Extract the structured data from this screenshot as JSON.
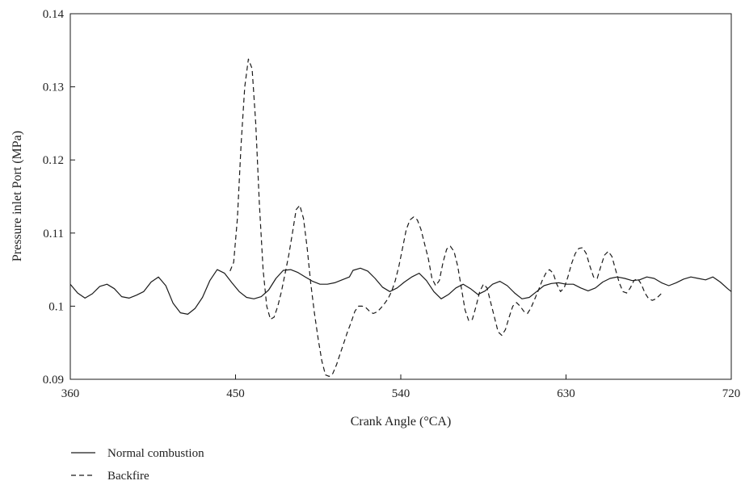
{
  "chart_data": {
    "type": "line",
    "title": "",
    "xlabel": "Crank Angle (°CA)",
    "ylabel": "Pressure inlet Port (MPa)",
    "xlim": [
      360,
      720
    ],
    "ylim": [
      0.09,
      0.14
    ],
    "x_ticks": [
      360,
      450,
      540,
      630,
      720
    ],
    "x_tick_labels": [
      "360",
      "450",
      "540",
      "630",
      "720"
    ],
    "y_ticks": [
      0.09,
      0.1,
      0.11,
      0.12,
      0.13,
      0.14
    ],
    "y_tick_labels": [
      "0.09",
      "0.1",
      "0.11",
      "0.12",
      "0.13",
      "0.14"
    ],
    "grid": false,
    "legend_position": "bottom-left, below plot",
    "series": [
      {
        "name": "Normal combustion",
        "style": "solid",
        "color": "#1a1a1a",
        "points": [
          [
            360,
            0.103
          ],
          [
            364,
            0.1018
          ],
          [
            368,
            0.1011
          ],
          [
            372,
            0.1017
          ],
          [
            376,
            0.1027
          ],
          [
            380,
            0.103
          ],
          [
            384,
            0.1024
          ],
          [
            388,
            0.1013
          ],
          [
            392,
            0.1011
          ],
          [
            396,
            0.1015
          ],
          [
            400,
            0.102
          ],
          [
            404,
            0.1033
          ],
          [
            408,
            0.104
          ],
          [
            412,
            0.1028
          ],
          [
            416,
            0.1004
          ],
          [
            420,
            0.0991
          ],
          [
            424,
            0.0989
          ],
          [
            428,
            0.0997
          ],
          [
            432,
            0.1012
          ],
          [
            436,
            0.1035
          ],
          [
            440,
            0.105
          ],
          [
            444,
            0.1045
          ],
          [
            448,
            0.1032
          ],
          [
            452,
            0.102
          ],
          [
            456,
            0.1012
          ],
          [
            460,
            0.101
          ],
          [
            464,
            0.1013
          ],
          [
            468,
            0.1022
          ],
          [
            472,
            0.1038
          ],
          [
            476,
            0.1049
          ],
          [
            480,
            0.105
          ],
          [
            484,
            0.1046
          ],
          [
            488,
            0.104
          ],
          [
            492,
            0.1034
          ],
          [
            496,
            0.103
          ],
          [
            500,
            0.103
          ],
          [
            504,
            0.1032
          ],
          [
            508,
            0.1036
          ],
          [
            512,
            0.104
          ],
          [
            514,
            0.1049
          ],
          [
            518,
            0.1052
          ],
          [
            522,
            0.1048
          ],
          [
            526,
            0.1038
          ],
          [
            530,
            0.1026
          ],
          [
            534,
            0.102
          ],
          [
            538,
            0.1025
          ],
          [
            542,
            0.1033
          ],
          [
            546,
            0.104
          ],
          [
            550,
            0.1045
          ],
          [
            554,
            0.1035
          ],
          [
            558,
            0.102
          ],
          [
            562,
            0.101
          ],
          [
            566,
            0.1016
          ],
          [
            570,
            0.1025
          ],
          [
            574,
            0.103
          ],
          [
            578,
            0.1024
          ],
          [
            582,
            0.1016
          ],
          [
            586,
            0.1021
          ],
          [
            590,
            0.103
          ],
          [
            594,
            0.1034
          ],
          [
            598,
            0.1028
          ],
          [
            602,
            0.1018
          ],
          [
            606,
            0.101
          ],
          [
            610,
            0.1012
          ],
          [
            614,
            0.102
          ],
          [
            618,
            0.1028
          ],
          [
            622,
            0.1031
          ],
          [
            626,
            0.1032
          ],
          [
            630,
            0.103
          ],
          [
            634,
            0.103
          ],
          [
            638,
            0.1025
          ],
          [
            642,
            0.1021
          ],
          [
            646,
            0.1025
          ],
          [
            650,
            0.1033
          ],
          [
            654,
            0.1038
          ],
          [
            658,
            0.104
          ],
          [
            662,
            0.1038
          ],
          [
            666,
            0.1035
          ],
          [
            670,
            0.1036
          ],
          [
            674,
            0.104
          ],
          [
            678,
            0.1038
          ],
          [
            682,
            0.1032
          ],
          [
            686,
            0.1028
          ],
          [
            690,
            0.1032
          ],
          [
            694,
            0.1037
          ],
          [
            698,
            0.104
          ],
          [
            702,
            0.1038
          ],
          [
            706,
            0.1036
          ],
          [
            710,
            0.104
          ],
          [
            714,
            0.1033
          ],
          [
            718,
            0.1024
          ],
          [
            720,
            0.102
          ]
        ]
      },
      {
        "name": "Backfire",
        "style": "dashed",
        "color": "#1a1a1a",
        "points": [
          [
            447,
            0.1048
          ],
          [
            449,
            0.106
          ],
          [
            451,
            0.112
          ],
          [
            453,
            0.122
          ],
          [
            455,
            0.13
          ],
          [
            457,
            0.1338
          ],
          [
            459,
            0.1325
          ],
          [
            461,
            0.125
          ],
          [
            463,
            0.114
          ],
          [
            465,
            0.105
          ],
          [
            467,
            0.1
          ],
          [
            469,
            0.0982
          ],
          [
            471,
            0.0985
          ],
          [
            473,
            0.1
          ],
          [
            475,
            0.102
          ],
          [
            477,
            0.1045
          ],
          [
            479,
            0.107
          ],
          [
            481,
            0.11
          ],
          [
            483,
            0.1132
          ],
          [
            485,
            0.1138
          ],
          [
            487,
            0.112
          ],
          [
            489,
            0.108
          ],
          [
            491,
            0.103
          ],
          [
            493,
            0.099
          ],
          [
            495,
            0.0955
          ],
          [
            497,
            0.0925
          ],
          [
            499,
            0.0906
          ],
          [
            501,
            0.0904
          ],
          [
            503,
            0.0908
          ],
          [
            505,
            0.092
          ],
          [
            507,
            0.0935
          ],
          [
            509,
            0.095
          ],
          [
            511,
            0.0965
          ],
          [
            513,
            0.0978
          ],
          [
            515,
            0.0993
          ],
          [
            517,
            0.1
          ],
          [
            519,
            0.1
          ],
          [
            521,
            0.0998
          ],
          [
            523,
            0.0993
          ],
          [
            525,
            0.099
          ],
          [
            527,
            0.0992
          ],
          [
            529,
            0.0997
          ],
          [
            531,
            0.1003
          ],
          [
            533,
            0.101
          ],
          [
            535,
            0.102
          ],
          [
            537,
            0.1035
          ],
          [
            539,
            0.1055
          ],
          [
            541,
            0.108
          ],
          [
            543,
            0.1105
          ],
          [
            545,
            0.1118
          ],
          [
            547,
            0.1122
          ],
          [
            549,
            0.1118
          ],
          [
            551,
            0.1105
          ],
          [
            553,
            0.1085
          ],
          [
            555,
            0.1065
          ],
          [
            557,
            0.1038
          ],
          [
            559,
            0.1028
          ],
          [
            561,
            0.1035
          ],
          [
            563,
            0.106
          ],
          [
            565,
            0.1078
          ],
          [
            567,
            0.1082
          ],
          [
            569,
            0.1075
          ],
          [
            571,
            0.1055
          ],
          [
            573,
            0.1025
          ],
          [
            575,
            0.0995
          ],
          [
            577,
            0.098
          ],
          [
            579,
            0.0982
          ],
          [
            581,
            0.1
          ],
          [
            583,
            0.102
          ],
          [
            585,
            0.103
          ],
          [
            587,
            0.1025
          ],
          [
            589,
            0.1005
          ],
          [
            591,
            0.0985
          ],
          [
            593,
            0.0965
          ],
          [
            595,
            0.096
          ],
          [
            597,
            0.0968
          ],
          [
            599,
            0.0985
          ],
          [
            601,
            0.1
          ],
          [
            603,
            0.1005
          ],
          [
            605,
            0.1
          ],
          [
            607,
            0.0993
          ],
          [
            609,
            0.099
          ],
          [
            611,
            0.0998
          ],
          [
            613,
            0.101
          ],
          [
            615,
            0.1022
          ],
          [
            617,
            0.1035
          ],
          [
            619,
            0.1045
          ],
          [
            621,
            0.105
          ],
          [
            623,
            0.1045
          ],
          [
            625,
            0.103
          ],
          [
            627,
            0.102
          ],
          [
            629,
            0.1025
          ],
          [
            631,
            0.104
          ],
          [
            633,
            0.1058
          ],
          [
            635,
            0.1072
          ],
          [
            637,
            0.1079
          ],
          [
            639,
            0.108
          ],
          [
            641,
            0.1072
          ],
          [
            643,
            0.1055
          ],
          [
            645,
            0.104
          ],
          [
            647,
            0.1038
          ],
          [
            649,
            0.1055
          ],
          [
            651,
            0.107
          ],
          [
            653,
            0.1075
          ],
          [
            655,
            0.1068
          ],
          [
            657,
            0.105
          ],
          [
            659,
            0.1032
          ],
          [
            661,
            0.102
          ],
          [
            663,
            0.1018
          ],
          [
            665,
            0.1025
          ],
          [
            667,
            0.1035
          ],
          [
            669,
            0.1038
          ],
          [
            671,
            0.103
          ],
          [
            673,
            0.1018
          ],
          [
            675,
            0.101
          ],
          [
            677,
            0.1008
          ],
          [
            679,
            0.101
          ],
          [
            681,
            0.1015
          ],
          [
            683,
            0.102
          ]
        ]
      }
    ]
  }
}
